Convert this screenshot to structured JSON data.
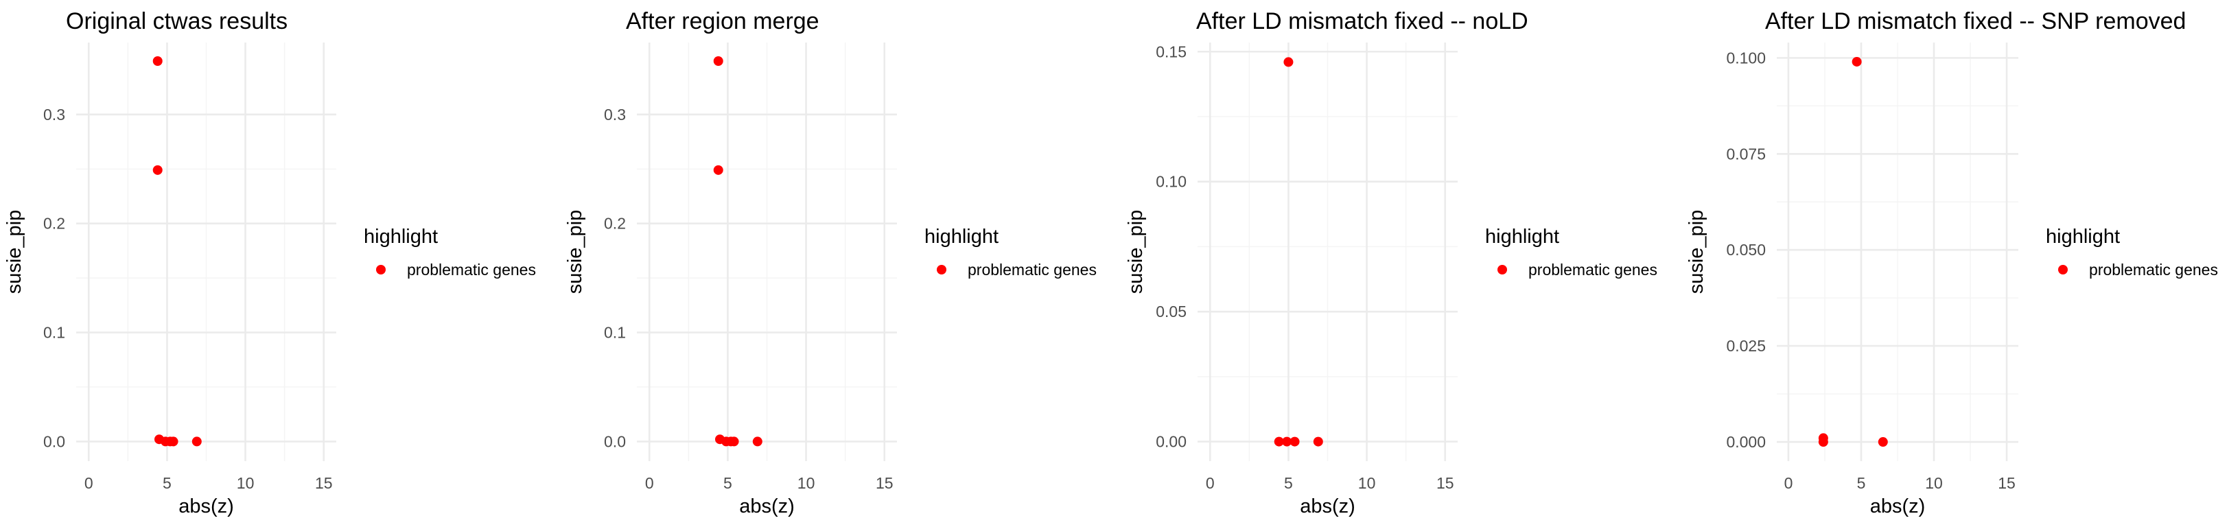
{
  "chart_data": [
    {
      "type": "scatter",
      "title": "Original ctwas results",
      "xlabel": "abs(z)",
      "ylabel": "susie_pip",
      "xlim": [
        -0.8,
        15.8
      ],
      "ylim": [
        -0.018,
        0.366
      ],
      "xticks": [
        0,
        5,
        10,
        15
      ],
      "xtick_labels": [
        "0",
        "5",
        "10",
        "15"
      ],
      "yticks": [
        0.0,
        0.1,
        0.2,
        0.3
      ],
      "ytick_labels": [
        "0.0",
        "0.1",
        "0.2",
        "0.3"
      ],
      "grid": true,
      "legend_placement": "right",
      "series": [
        {
          "name": "problematic genes",
          "color": "#ff0000",
          "x": [
            4.4,
            4.4,
            4.5,
            4.9,
            5.2,
            5.4,
            6.9
          ],
          "y": [
            0.349,
            0.249,
            0.002,
            0.0,
            0.0,
            0.0,
            0.0
          ]
        }
      ]
    },
    {
      "type": "scatter",
      "title": "After region merge",
      "xlabel": "abs(z)",
      "ylabel": "susie_pip",
      "xlim": [
        -0.8,
        15.8
      ],
      "ylim": [
        -0.018,
        0.366
      ],
      "xticks": [
        0,
        5,
        10,
        15
      ],
      "xtick_labels": [
        "0",
        "5",
        "10",
        "15"
      ],
      "yticks": [
        0.0,
        0.1,
        0.2,
        0.3
      ],
      "ytick_labels": [
        "0.0",
        "0.1",
        "0.2",
        "0.3"
      ],
      "grid": true,
      "legend_placement": "right",
      "series": [
        {
          "name": "problematic genes",
          "color": "#ff0000",
          "x": [
            4.4,
            4.4,
            4.5,
            4.9,
            5.2,
            5.4,
            6.9
          ],
          "y": [
            0.349,
            0.249,
            0.002,
            0.0,
            0.0,
            0.0,
            0.0
          ]
        }
      ]
    },
    {
      "type": "scatter",
      "title": "After LD mismatch fixed -- noLD",
      "xlabel": "abs(z)",
      "ylabel": "susie_pip",
      "xlim": [
        -0.8,
        15.8
      ],
      "ylim": [
        -0.0075,
        0.1535
      ],
      "xticks": [
        0,
        5,
        10,
        15
      ],
      "xtick_labels": [
        "0",
        "5",
        "10",
        "15"
      ],
      "yticks": [
        0.0,
        0.05,
        0.1,
        0.15
      ],
      "ytick_labels": [
        "0.00",
        "0.05",
        "0.10",
        "0.15"
      ],
      "grid": true,
      "legend_placement": "right",
      "series": [
        {
          "name": "problematic genes",
          "color": "#ff0000",
          "x": [
            5.0,
            4.4,
            4.9,
            5.4,
            6.9
          ],
          "y": [
            0.146,
            0.0,
            0.0,
            0.0,
            0.0
          ]
        }
      ]
    },
    {
      "type": "scatter",
      "title": "After LD mismatch fixed -- SNP removed",
      "xlabel": "abs(z)",
      "ylabel": "susie_pip",
      "xlim": [
        -0.8,
        15.8
      ],
      "ylim": [
        -0.005,
        0.104
      ],
      "xticks": [
        0,
        5,
        10,
        15
      ],
      "xtick_labels": [
        "0",
        "5",
        "10",
        "15"
      ],
      "yticks": [
        0.0,
        0.025,
        0.05,
        0.075,
        0.1
      ],
      "ytick_labels": [
        "0.000",
        "0.025",
        "0.050",
        "0.075",
        "0.100"
      ],
      "grid": true,
      "legend_placement": "right",
      "series": [
        {
          "name": "problematic genes",
          "color": "#ff0000",
          "x": [
            4.7,
            2.4,
            2.4,
            6.5
          ],
          "y": [
            0.099,
            0.001,
            0.0,
            0.0
          ]
        }
      ]
    }
  ],
  "legend": {
    "title": "highlight",
    "label": "problematic genes",
    "color": "#ff0000"
  }
}
